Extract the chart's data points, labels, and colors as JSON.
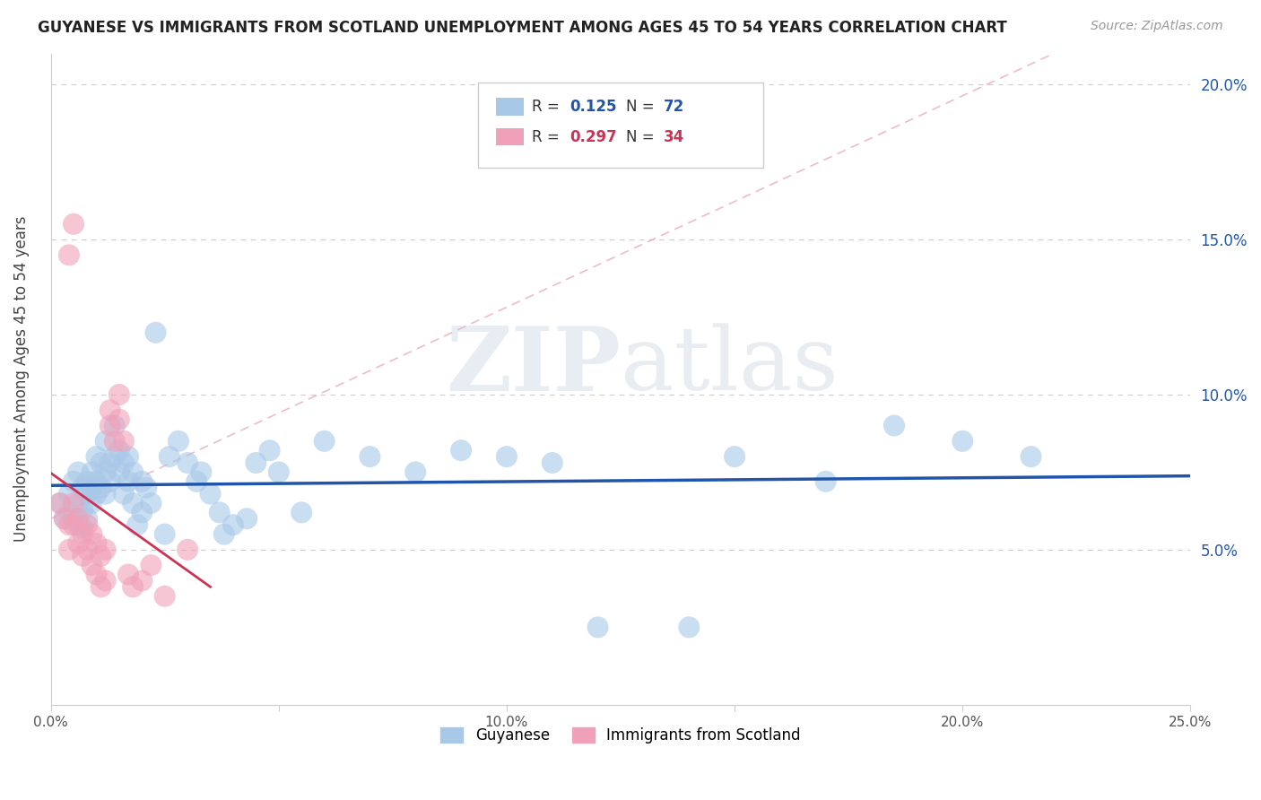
{
  "title": "GUYANESE VS IMMIGRANTS FROM SCOTLAND UNEMPLOYMENT AMONG AGES 45 TO 54 YEARS CORRELATION CHART",
  "source": "Source: ZipAtlas.com",
  "ylabel": "Unemployment Among Ages 45 to 54 years",
  "xlim": [
    0.0,
    0.25
  ],
  "ylim": [
    0.0,
    0.21
  ],
  "xticks": [
    0.0,
    0.05,
    0.1,
    0.15,
    0.2,
    0.25
  ],
  "xticklabels": [
    "0.0%",
    "",
    "10.0%",
    "",
    "20.0%",
    "25.0%"
  ],
  "yticks_right": [
    0.05,
    0.1,
    0.15,
    0.2
  ],
  "yticklabels_right": [
    "5.0%",
    "10.0%",
    "15.0%",
    "20.0%"
  ],
  "blue_color": "#A8C8E8",
  "pink_color": "#F0A0B8",
  "blue_line_color": "#2255AA",
  "pink_line_color": "#CC3355",
  "pink_dash_color": "#E8A0B0",
  "legend_blue_color": "#2255AA",
  "legend_pink_color": "#CC3355",
  "R_blue": 0.125,
  "N_blue": 72,
  "R_pink": 0.297,
  "N_pink": 34,
  "blue_scatter": [
    [
      0.002,
      0.065
    ],
    [
      0.003,
      0.06
    ],
    [
      0.004,
      0.068
    ],
    [
      0.004,
      0.062
    ],
    [
      0.005,
      0.072
    ],
    [
      0.005,
      0.06
    ],
    [
      0.006,
      0.075
    ],
    [
      0.006,
      0.065
    ],
    [
      0.006,
      0.058
    ],
    [
      0.007,
      0.07
    ],
    [
      0.007,
      0.063
    ],
    [
      0.007,
      0.057
    ],
    [
      0.008,
      0.072
    ],
    [
      0.008,
      0.068
    ],
    [
      0.008,
      0.06
    ],
    [
      0.009,
      0.075
    ],
    [
      0.009,
      0.07
    ],
    [
      0.009,
      0.065
    ],
    [
      0.01,
      0.08
    ],
    [
      0.01,
      0.072
    ],
    [
      0.01,
      0.068
    ],
    [
      0.011,
      0.078
    ],
    [
      0.011,
      0.07
    ],
    [
      0.012,
      0.085
    ],
    [
      0.012,
      0.075
    ],
    [
      0.012,
      0.068
    ],
    [
      0.013,
      0.078
    ],
    [
      0.013,
      0.072
    ],
    [
      0.014,
      0.09
    ],
    [
      0.014,
      0.08
    ],
    [
      0.015,
      0.082
    ],
    [
      0.015,
      0.075
    ],
    [
      0.016,
      0.078
    ],
    [
      0.016,
      0.068
    ],
    [
      0.017,
      0.08
    ],
    [
      0.017,
      0.072
    ],
    [
      0.018,
      0.075
    ],
    [
      0.018,
      0.065
    ],
    [
      0.019,
      0.058
    ],
    [
      0.02,
      0.072
    ],
    [
      0.02,
      0.062
    ],
    [
      0.021,
      0.07
    ],
    [
      0.022,
      0.065
    ],
    [
      0.023,
      0.12
    ],
    [
      0.025,
      0.055
    ],
    [
      0.026,
      0.08
    ],
    [
      0.028,
      0.085
    ],
    [
      0.03,
      0.078
    ],
    [
      0.032,
      0.072
    ],
    [
      0.033,
      0.075
    ],
    [
      0.035,
      0.068
    ],
    [
      0.037,
      0.062
    ],
    [
      0.038,
      0.055
    ],
    [
      0.04,
      0.058
    ],
    [
      0.043,
      0.06
    ],
    [
      0.045,
      0.078
    ],
    [
      0.048,
      0.082
    ],
    [
      0.05,
      0.075
    ],
    [
      0.055,
      0.062
    ],
    [
      0.06,
      0.085
    ],
    [
      0.07,
      0.08
    ],
    [
      0.08,
      0.075
    ],
    [
      0.09,
      0.082
    ],
    [
      0.1,
      0.08
    ],
    [
      0.11,
      0.078
    ],
    [
      0.12,
      0.025
    ],
    [
      0.14,
      0.025
    ],
    [
      0.15,
      0.08
    ],
    [
      0.17,
      0.072
    ],
    [
      0.185,
      0.09
    ],
    [
      0.2,
      0.085
    ],
    [
      0.215,
      0.08
    ]
  ],
  "pink_scatter": [
    [
      0.002,
      0.065
    ],
    [
      0.003,
      0.06
    ],
    [
      0.004,
      0.058
    ],
    [
      0.004,
      0.05
    ],
    [
      0.005,
      0.065
    ],
    [
      0.005,
      0.058
    ],
    [
      0.006,
      0.06
    ],
    [
      0.006,
      0.052
    ],
    [
      0.007,
      0.055
    ],
    [
      0.007,
      0.048
    ],
    [
      0.008,
      0.058
    ],
    [
      0.008,
      0.05
    ],
    [
      0.009,
      0.055
    ],
    [
      0.009,
      0.045
    ],
    [
      0.01,
      0.052
    ],
    [
      0.01,
      0.042
    ],
    [
      0.011,
      0.048
    ],
    [
      0.011,
      0.038
    ],
    [
      0.012,
      0.05
    ],
    [
      0.012,
      0.04
    ],
    [
      0.013,
      0.095
    ],
    [
      0.013,
      0.09
    ],
    [
      0.014,
      0.085
    ],
    [
      0.015,
      0.1
    ],
    [
      0.015,
      0.092
    ],
    [
      0.016,
      0.085
    ],
    [
      0.017,
      0.042
    ],
    [
      0.018,
      0.038
    ],
    [
      0.02,
      0.04
    ],
    [
      0.022,
      0.045
    ],
    [
      0.025,
      0.035
    ],
    [
      0.03,
      0.05
    ],
    [
      0.004,
      0.145
    ],
    [
      0.005,
      0.155
    ]
  ],
  "watermark_zip": "ZIP",
  "watermark_atlas": "atlas",
  "bg_color": "#FFFFFF",
  "grid_color": "#CCCCCC",
  "grid_style": "--"
}
